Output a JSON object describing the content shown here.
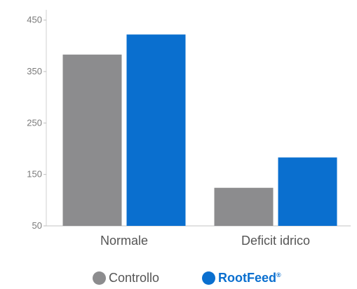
{
  "chart_data": {
    "type": "bar",
    "categories": [
      "Normale",
      "Deficit idrico"
    ],
    "series": [
      {
        "name": "Controllo",
        "values": [
          383,
          124
        ],
        "color": "#8c8c8e"
      },
      {
        "name": "RootFeed",
        "values": [
          422,
          183
        ],
        "color": "#0a6fcf"
      }
    ],
    "yticks": [
      50,
      150,
      250,
      350,
      450
    ],
    "ylim": [
      50,
      470
    ],
    "legend_position": "bottom",
    "grid": false
  },
  "legend": {
    "items": [
      {
        "label": "Controllo",
        "color": "#8c8c8e"
      },
      {
        "label": "RootFeed",
        "mark": "®",
        "color": "#0a6fcf"
      }
    ]
  }
}
